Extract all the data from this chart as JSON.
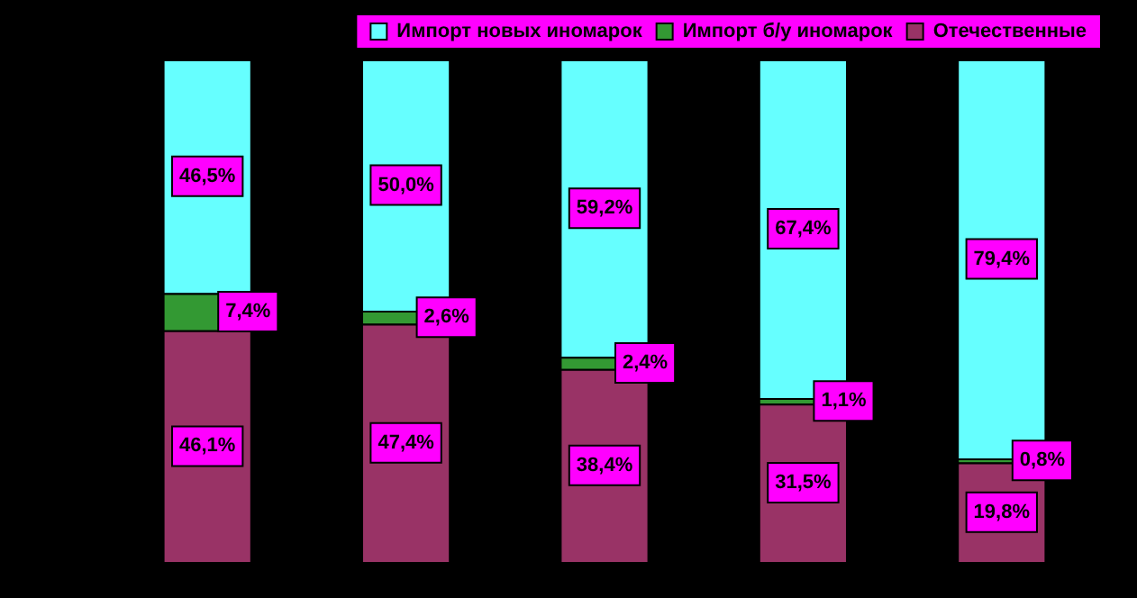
{
  "chart_data": {
    "type": "bar",
    "stacked": true,
    "legend": "top right",
    "tick_labels": false,
    "categories": [
      null,
      null,
      null,
      null,
      null
    ],
    "series": [
      {
        "name": "Отечественные",
        "color": "#993366",
        "values": [
          46.1,
          47.4,
          38.4,
          31.5,
          19.8
        ],
        "value_labels": [
          "46,1%",
          "47,4%",
          "38,4%",
          "31,5%",
          "19,8%"
        ]
      },
      {
        "name": "Импорт б/у иномарок",
        "color": "#339933",
        "values": [
          7.4,
          2.6,
          2.4,
          1.1,
          0.8
        ],
        "value_labels": [
          "7,4%",
          "2,6%",
          "2,4%",
          "1,1%",
          "0,8%"
        ]
      },
      {
        "name": "Импорт новых иномарок",
        "color": "#66ffff",
        "values": [
          46.5,
          50.0,
          59.2,
          67.4,
          79.4
        ],
        "value_labels": [
          "46,5%",
          "50,0%",
          "59,2%",
          "67,4%",
          "79,4%"
        ]
      }
    ]
  }
}
